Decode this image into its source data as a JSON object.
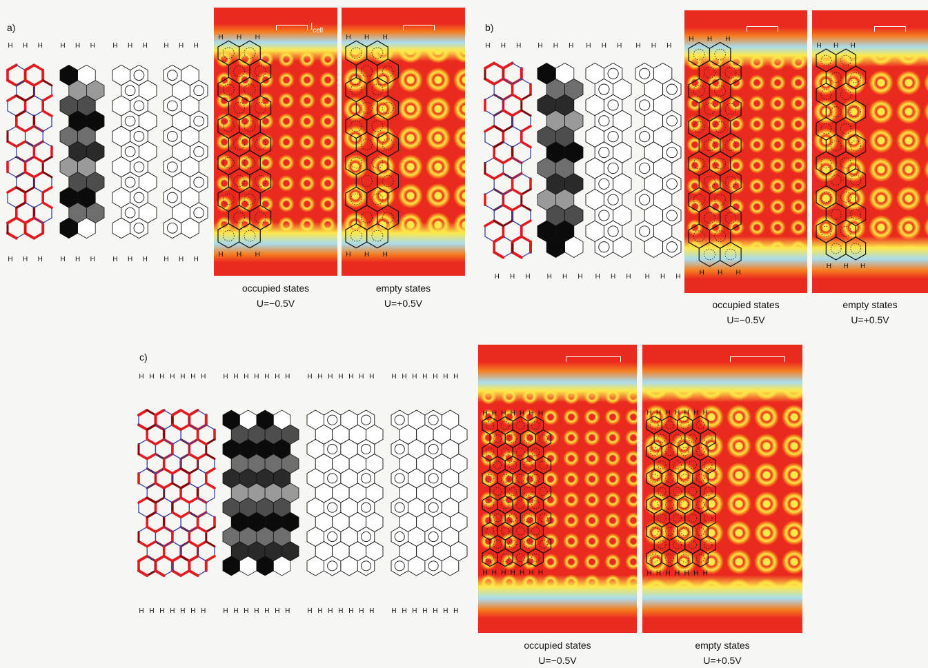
{
  "panels": [
    {
      "id": "a",
      "label": "a)",
      "scale_bar_label": "l",
      "scale_bar_sub": "cell",
      "occupied": {
        "title": "occupied states",
        "voltage": "U=−0.5V"
      },
      "empty": {
        "title": "empty states",
        "voltage": "U=+0.5V"
      }
    },
    {
      "id": "b",
      "label": "b)",
      "occupied": {
        "title": "occupied states",
        "voltage": "U=−0.5V"
      },
      "empty": {
        "title": "empty states",
        "voltage": "U=+0.5V"
      }
    },
    {
      "id": "c",
      "label": "c)",
      "occupied": {
        "title": "occupied states",
        "voltage": "U=−0.5V"
      },
      "empty": {
        "title": "empty states",
        "voltage": "U=+0.5V"
      }
    }
  ],
  "atom_label": "H",
  "colors": {
    "map_red": "#ea2a1f",
    "map_orange": "#f57c1e",
    "map_yellow": "#fde84a",
    "map_cyan": "#a9dcee",
    "bond_blue": "#3742a0",
    "bond_red": "#e01b22",
    "bond_darkred": "#7a0b10"
  }
}
